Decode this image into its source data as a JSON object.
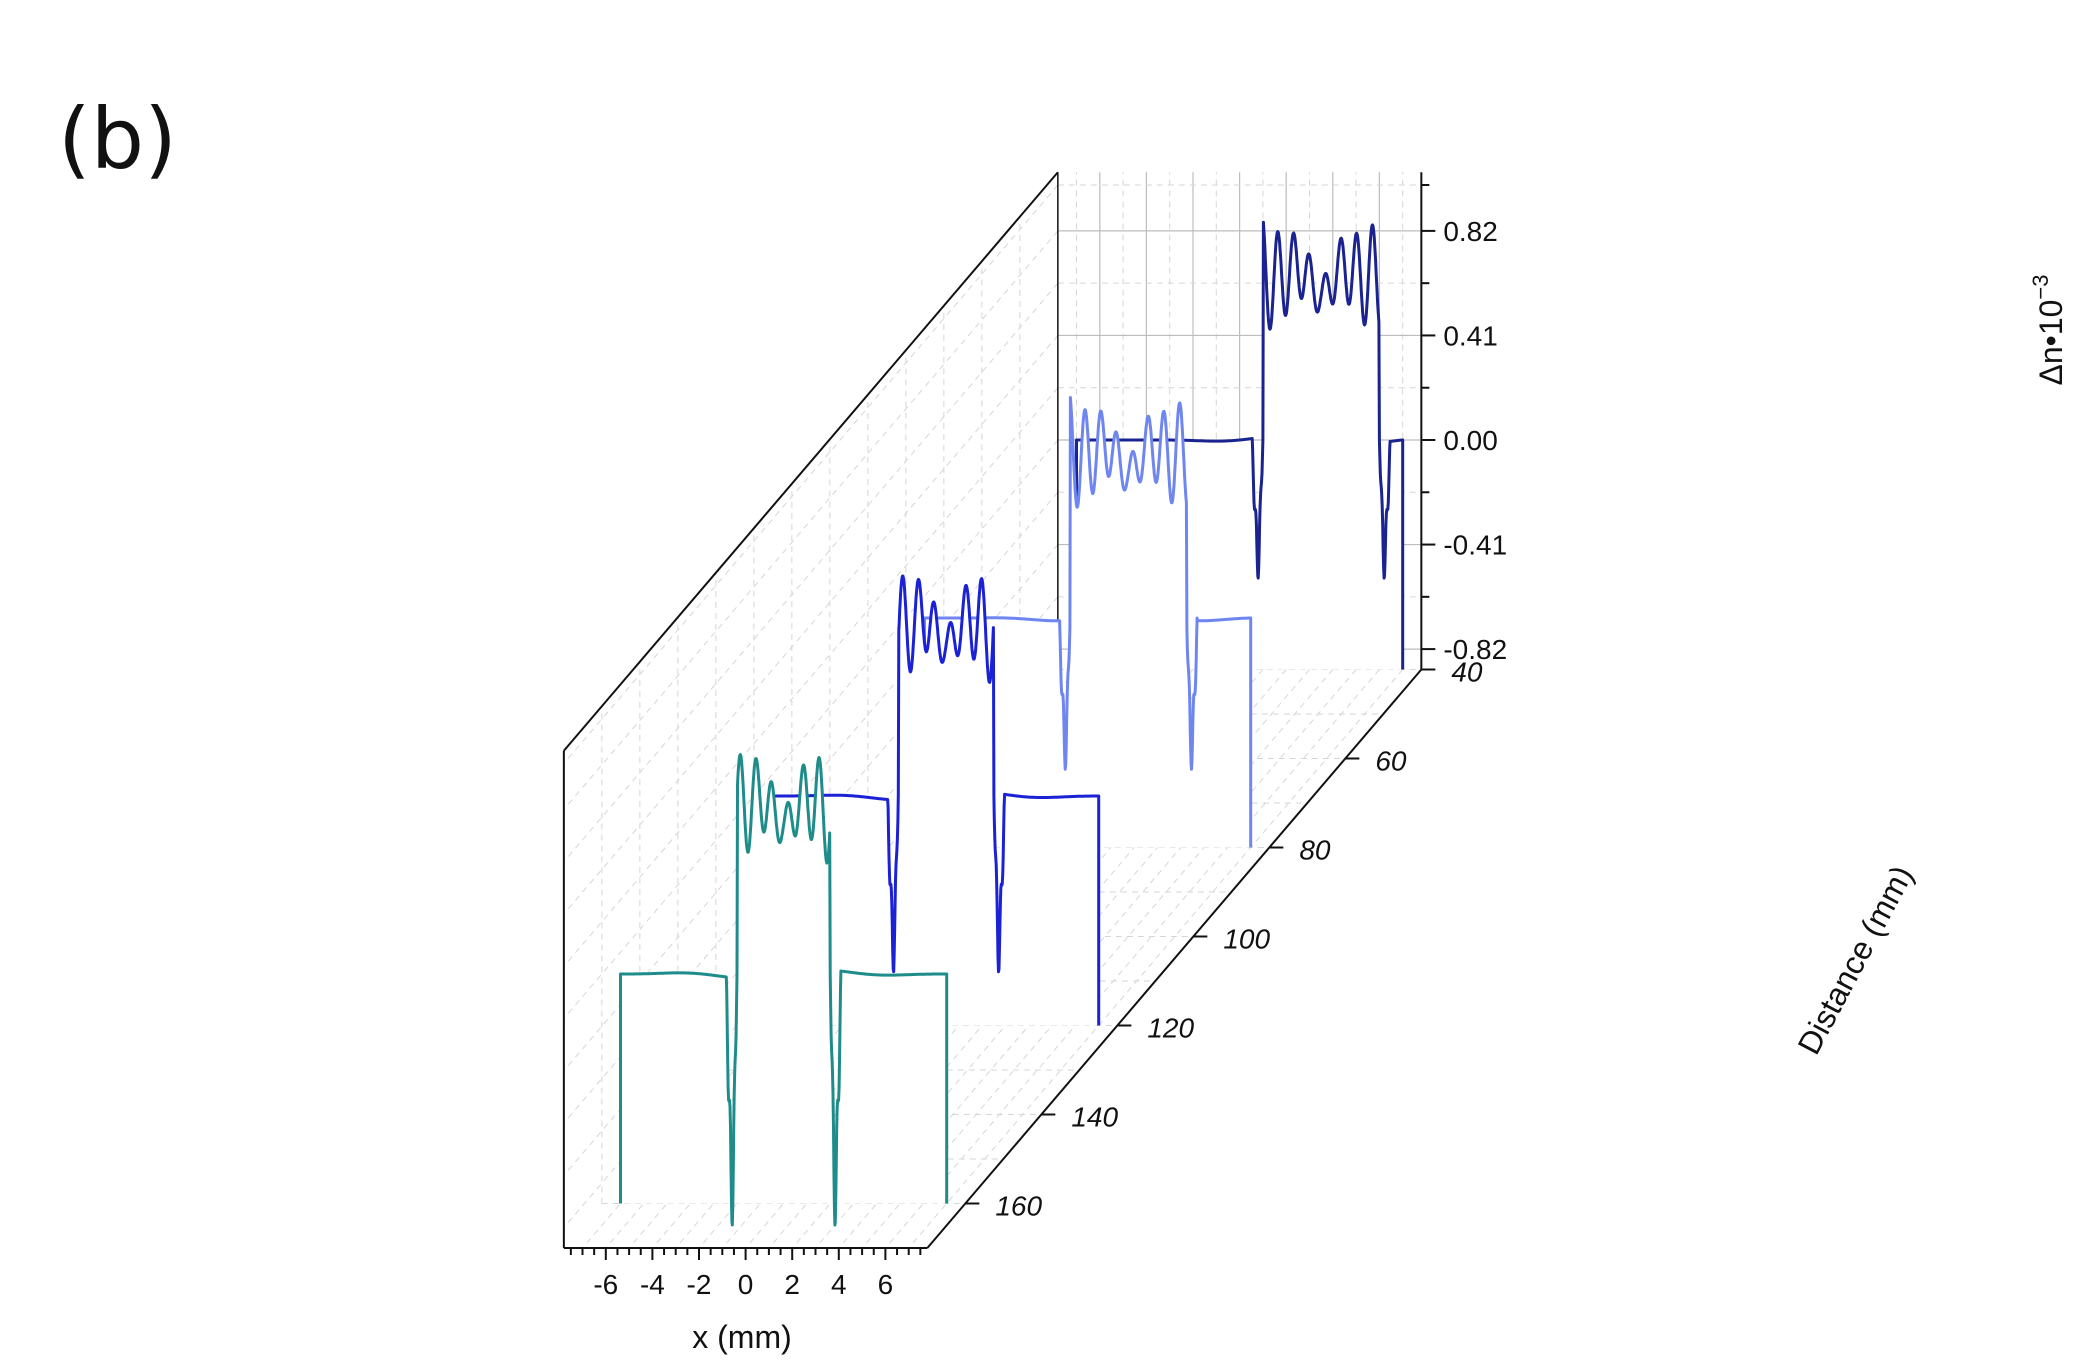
{
  "panel_label": "(b)",
  "chart_data": {
    "type": "line",
    "subtype": "3d-waterfall",
    "title": "",
    "xlabel": "x (mm)",
    "ylabel": "Distance (mm)",
    "zlabel": "Δn•10",
    "zlabel_exponent": "−3",
    "xlim": [
      -7.8,
      7.8
    ],
    "xticks": [
      -6,
      -4,
      -2,
      0,
      2,
      4,
      6
    ],
    "xtick_labels": [
      "-6",
      "-4",
      "-2",
      "0",
      "2",
      "4",
      "6"
    ],
    "ylim": [
      40,
      170
    ],
    "yticks": [
      40,
      60,
      80,
      100,
      120,
      140,
      160
    ],
    "ytick_labels": [
      "40",
      "60",
      "80",
      "100",
      "120",
      "140",
      "160"
    ],
    "zlim": [
      -0.9,
      1.05
    ],
    "zticks": [
      0.82,
      0.41,
      0.0,
      -0.41,
      -0.82
    ],
    "ztick_labels": [
      "0.82",
      "0.41",
      "0.00",
      "-0.41",
      "-0.82"
    ],
    "grid": true,
    "legend": "none",
    "series": [
      {
        "distance": 40,
        "color": "#1a2390",
        "center": 3.5,
        "half_width": 2.5,
        "plateau_z": 0.96,
        "dip_z": -0.55
      },
      {
        "distance": 80,
        "color": "#6f86f0",
        "center": 1.75,
        "half_width": 2.5,
        "plateau_z": 0.96,
        "dip_z": -0.6
      },
      {
        "distance": 120,
        "color": "#1b22d6",
        "center": 0.45,
        "half_width": 2.05,
        "plateau_z": 0.99,
        "dip_z": -0.7
      },
      {
        "distance": 160,
        "color": "#1e8c8a",
        "center": 0.0,
        "half_width": 2.0,
        "plateau_z": 0.98,
        "dip_z": -1.0
      }
    ]
  }
}
